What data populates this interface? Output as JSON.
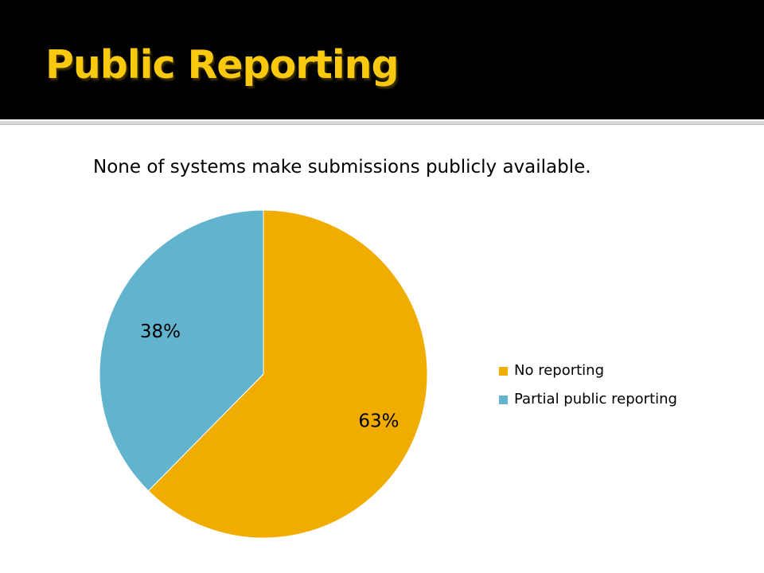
{
  "slide": {
    "title": "Public Reporting",
    "subtitle": "None of systems make submissions publicly available."
  },
  "chart_data": {
    "type": "pie",
    "title": "",
    "categories": [
      "No reporting",
      "Partial public reporting"
    ],
    "values": [
      63,
      38
    ],
    "data_labels": [
      "63%",
      "38%"
    ],
    "colors": [
      "#f0ad00",
      "#62b3ce"
    ],
    "legend_position": "right",
    "start_angle": "top",
    "direction": "clockwise"
  },
  "colors": {
    "title_bar": "#000000",
    "title_text": "#f9c90f"
  }
}
